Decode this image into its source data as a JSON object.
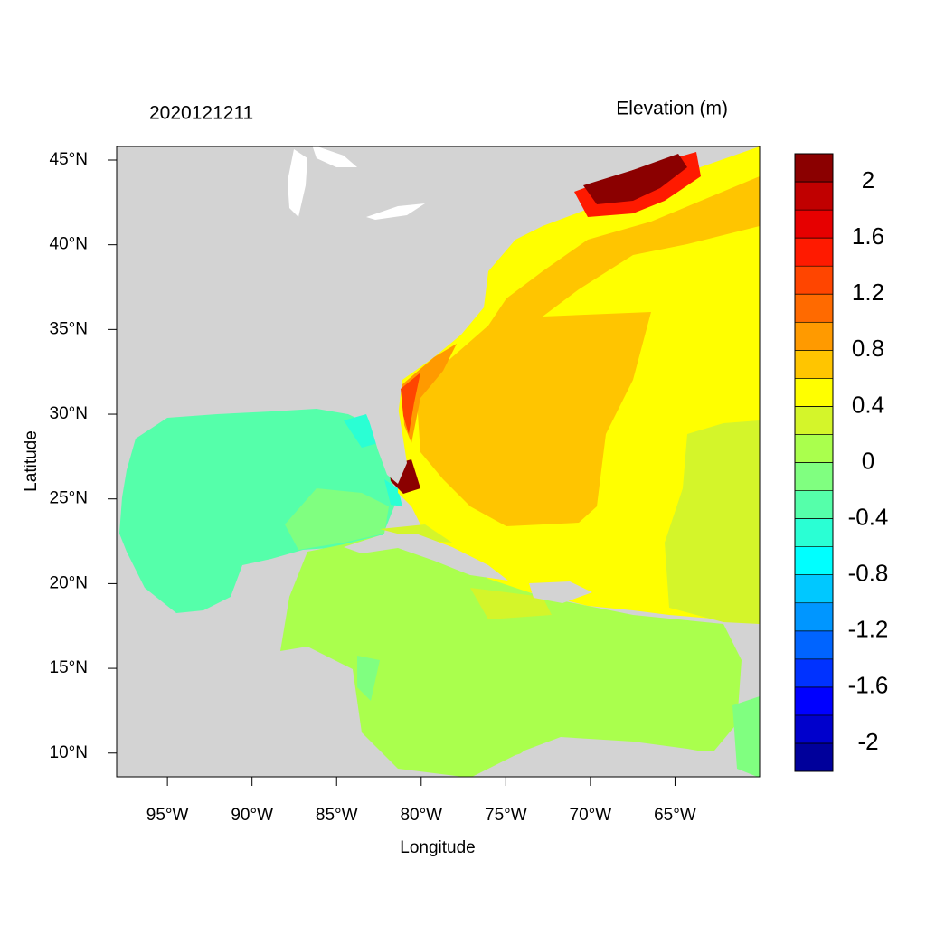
{
  "title": "2020121211",
  "subtitle": "Elevation (m)",
  "x_label": "Longitude",
  "y_label": "Latitude",
  "xlim": [
    -98,
    -60
  ],
  "ylim": [
    8.6,
    45.8
  ],
  "xticks": [
    {
      "value": -95,
      "label": "95°W"
    },
    {
      "value": -90,
      "label": "90°W"
    },
    {
      "value": -85,
      "label": "85°W"
    },
    {
      "value": -80,
      "label": "80°W"
    },
    {
      "value": -75,
      "label": "75°W"
    },
    {
      "value": -70,
      "label": "70°W"
    },
    {
      "value": -65,
      "label": "65°W"
    }
  ],
  "yticks": [
    {
      "value": 10,
      "label": "10°N"
    },
    {
      "value": 15,
      "label": "15°N"
    },
    {
      "value": 20,
      "label": "20°N"
    },
    {
      "value": 25,
      "label": "25°N"
    },
    {
      "value": 30,
      "label": "30°N"
    },
    {
      "value": 35,
      "label": "35°N"
    },
    {
      "value": 40,
      "label": "40°N"
    },
    {
      "value": 45,
      "label": "45°N"
    }
  ],
  "colorbar": {
    "lim": [
      -2.2,
      2.2
    ],
    "ticks": [
      2,
      1.6,
      1.2,
      0.8,
      0.4,
      0,
      -0.4,
      -0.8,
      -1.2,
      -1.6,
      -2
    ],
    "colors": [
      "#00009b",
      "#0000cc",
      "#0000ff",
      "#0032ff",
      "#0064ff",
      "#0096ff",
      "#00c8ff",
      "#00ffff",
      "#2affd4",
      "#55ffaa",
      "#80ff80",
      "#aaff4d",
      "#d4f52a",
      "#ffff00",
      "#ffc500",
      "#ff9a00",
      "#ff6a00",
      "#ff4500",
      "#ff1a00",
      "#e60000",
      "#c00000",
      "#8b0000"
    ]
  }
}
